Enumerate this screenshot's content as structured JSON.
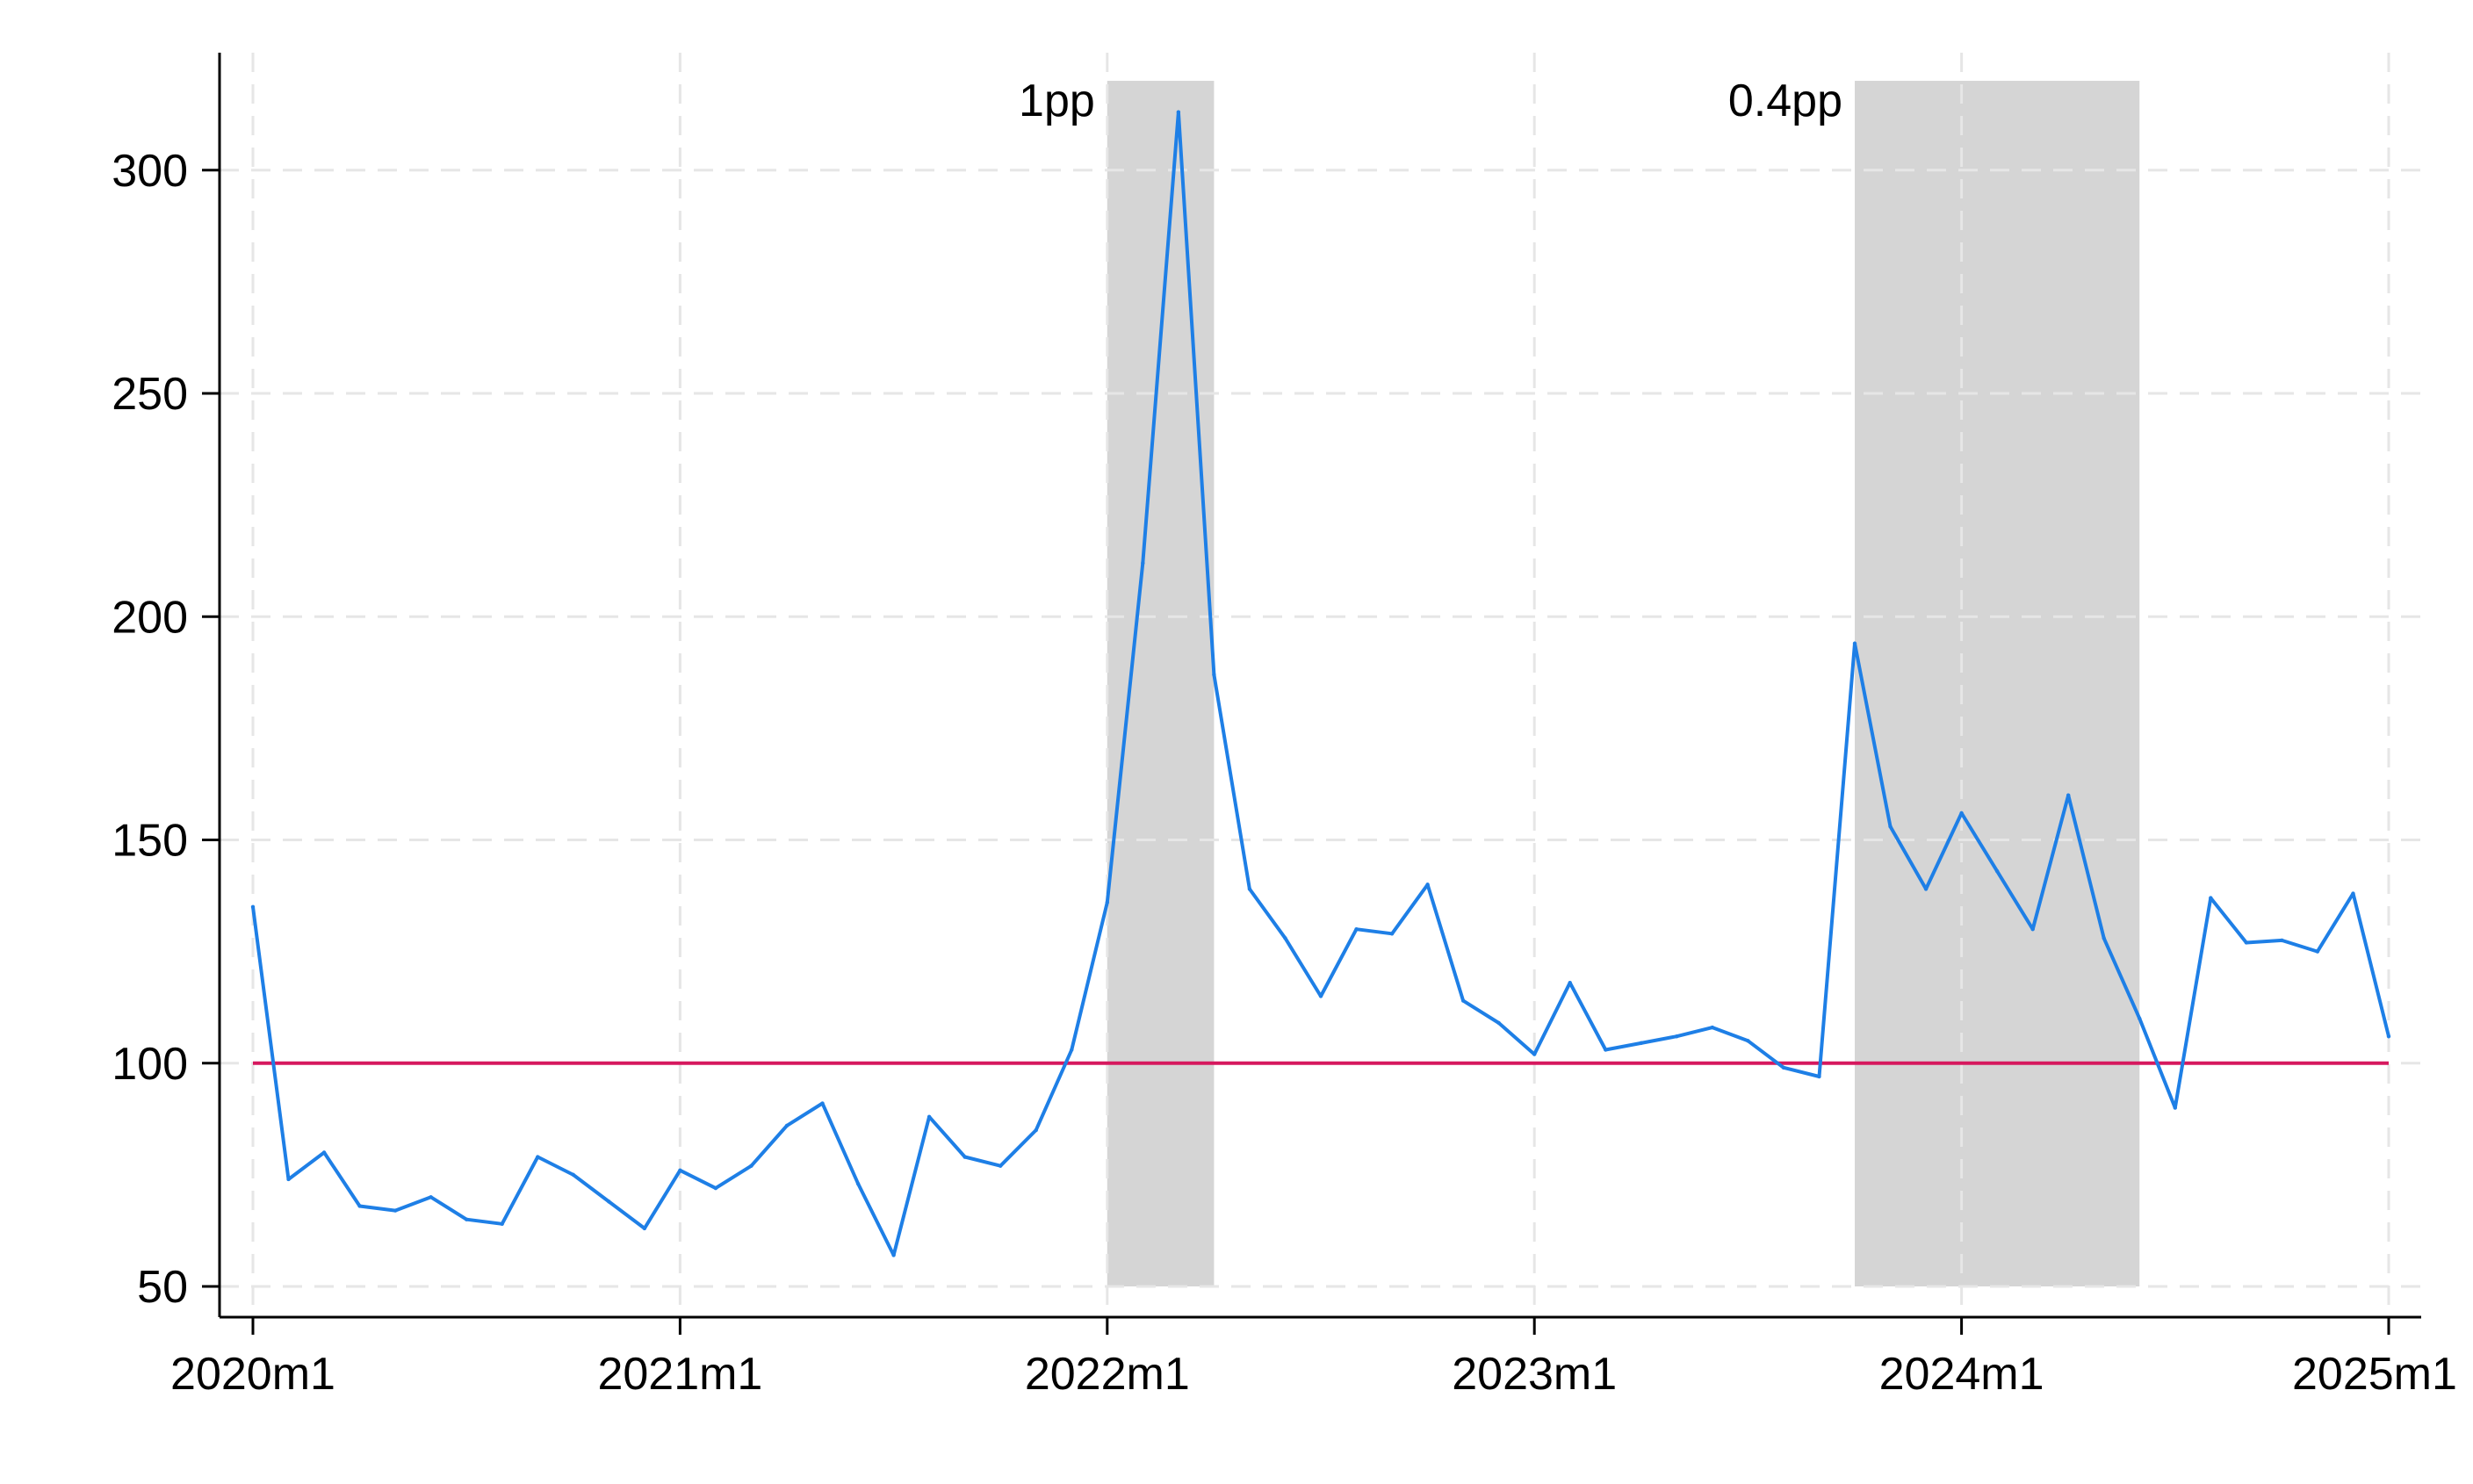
{
  "chart_data": {
    "type": "line",
    "title": "",
    "xlabel": "",
    "ylabel": "",
    "x_ticks": [
      "2020m1",
      "2021m1",
      "2022m1",
      "2023m1",
      "2024m1",
      "2025m1"
    ],
    "y_ticks": [
      50,
      100,
      150,
      200,
      250,
      300
    ],
    "ylim": [
      45,
      325
    ],
    "xlim": [
      "2020m1",
      "2025m1"
    ],
    "grid": true,
    "legend": "none",
    "reference_line": {
      "y": 100,
      "color": "#d6185e"
    },
    "shaded_regions": [
      {
        "start": "2022m1",
        "end": "2022m4",
        "label": "1pp",
        "y_range": [
          50,
          320
        ]
      },
      {
        "start": "2023m10",
        "end": "2024m6",
        "label": "0.4pp",
        "y_range": [
          50,
          320
        ]
      }
    ],
    "series": [
      {
        "color": "#1e7fe6",
        "x": [
          "2020m1",
          "2020m2",
          "2020m3",
          "2020m4",
          "2020m5",
          "2020m6",
          "2020m7",
          "2020m8",
          "2020m9",
          "2020m10",
          "2020m11",
          "2020m12",
          "2021m1",
          "2021m2",
          "2021m3",
          "2021m4",
          "2021m5",
          "2021m6",
          "2021m7",
          "2021m8",
          "2021m9",
          "2021m10",
          "2021m11",
          "2021m12",
          "2022m1",
          "2022m2",
          "2022m3",
          "2022m4",
          "2022m5",
          "2022m6",
          "2022m7",
          "2022m8",
          "2022m9",
          "2022m10",
          "2022m11",
          "2022m12",
          "2023m1",
          "2023m2",
          "2023m3",
          "2023m4",
          "2023m5",
          "2023m6",
          "2023m7",
          "2023m8",
          "2023m9",
          "2023m10",
          "2023m11",
          "2023m12",
          "2024m1",
          "2024m2",
          "2024m3",
          "2024m4",
          "2024m5",
          "2024m6",
          "2024m7",
          "2024m8",
          "2024m9",
          "2024m10",
          "2024m11",
          "2024m12",
          "2025m1"
        ],
        "values": [
          135,
          74,
          80,
          68,
          67,
          70,
          65,
          64,
          79,
          75,
          69,
          63,
          76,
          72,
          77,
          86,
          91,
          73,
          57,
          88,
          79,
          77,
          85,
          103,
          136,
          212,
          313,
          187,
          139,
          128,
          115,
          130,
          129,
          140,
          114,
          109,
          102,
          118,
          103,
          104.5,
          106,
          108,
          105,
          99,
          97,
          194,
          153,
          139,
          156,
          143,
          130,
          160,
          128,
          110,
          90,
          137,
          127,
          127.5,
          125,
          138,
          106
        ]
      }
    ]
  }
}
